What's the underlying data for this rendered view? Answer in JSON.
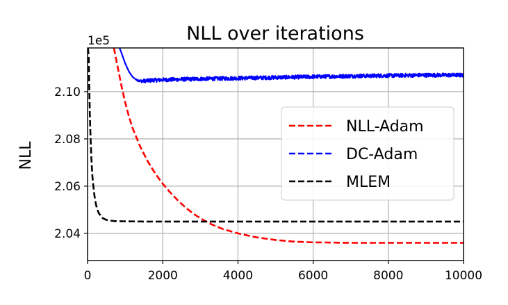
{
  "chart_data": {
    "type": "line",
    "title": "NLL over iterations",
    "xlabel": "",
    "ylabel": "NLL",
    "y_offset_label": "1e5",
    "xlim": [
      0,
      10000
    ],
    "ylim": [
      2.0285,
      2.1185
    ],
    "grid": true,
    "legend_position": "center-right",
    "x_ticks": [
      {
        "value": 0,
        "label": "0"
      },
      {
        "value": 2000,
        "label": "2000"
      },
      {
        "value": 4000,
        "label": "4000"
      },
      {
        "value": 6000,
        "label": "6000"
      },
      {
        "value": 8000,
        "label": "8000"
      },
      {
        "value": 10000,
        "label": "10000"
      }
    ],
    "y_ticks": [
      {
        "value": 2.04,
        "label": "2.04"
      },
      {
        "value": 2.06,
        "label": "2.06"
      },
      {
        "value": 2.08,
        "label": "2.08"
      },
      {
        "value": 2.1,
        "label": "2.10"
      }
    ],
    "series": [
      {
        "name": "NLL-Adam",
        "color": "#ff0000",
        "style": "dashed",
        "x": [
          700,
          800,
          900,
          1000,
          1100,
          1200,
          1400,
          1600,
          1800,
          2000,
          2200,
          2400,
          2600,
          2800,
          3000,
          3300,
          3600,
          4000,
          4500,
          5000,
          5500,
          6000,
          6500,
          7000,
          8000,
          9000,
          10000
        ],
        "y": [
          2.1185,
          2.1105,
          2.1025,
          2.0955,
          2.0895,
          2.0845,
          2.0768,
          2.0705,
          2.0653,
          2.061,
          2.0573,
          2.054,
          2.051,
          2.0485,
          2.0464,
          2.0438,
          2.0418,
          2.04,
          2.0383,
          2.0372,
          2.0365,
          2.0362,
          2.0361,
          2.036,
          2.036,
          2.036,
          2.036
        ]
      },
      {
        "name": "DC-Adam",
        "color": "#0000ff",
        "style": "dashed",
        "x": [
          850,
          900,
          1000,
          1100,
          1200,
          1300,
          1400,
          1500,
          1700,
          2000,
          2500,
          3000,
          4000,
          5000,
          6000,
          7000,
          8000,
          9000,
          10000
        ],
        "y": [
          2.1185,
          2.1165,
          2.112,
          2.1085,
          2.1062,
          2.105,
          2.1045,
          2.1045,
          2.1048,
          2.105,
          2.1052,
          2.1054,
          2.1057,
          2.106,
          2.1063,
          2.1066,
          2.1068,
          2.107,
          2.107
        ],
        "noise_amplitude": 0.0008
      },
      {
        "name": "MLEM",
        "color": "#000000",
        "style": "dashed",
        "x": [
          10,
          30,
          50,
          70,
          100,
          130,
          160,
          200,
          250,
          300,
          400,
          500,
          700,
          1000,
          1500,
          2000,
          3000,
          5000,
          7000,
          10000
        ],
        "y": [
          2.1185,
          2.115,
          2.098,
          2.085,
          2.072,
          2.064,
          2.059,
          2.054,
          2.0505,
          2.0485,
          2.0465,
          2.0457,
          2.0452,
          2.0451,
          2.045,
          2.045,
          2.045,
          2.045,
          2.045,
          2.045
        ]
      }
    ]
  }
}
